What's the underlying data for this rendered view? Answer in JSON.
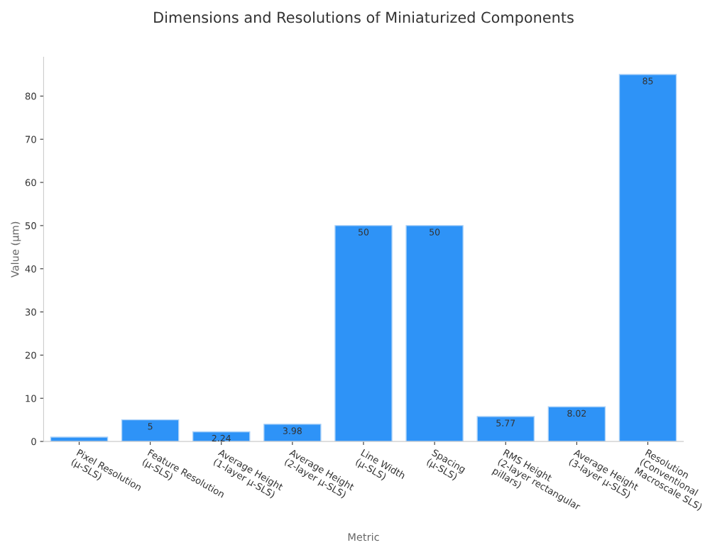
{
  "chart_data": {
    "type": "bar",
    "title": "Dimensions and Resolutions of Miniaturized Components",
    "xlabel": "Metric",
    "ylabel": "Value (µm)",
    "categories": [
      "Pixel Resolution\n(µ-SLS)",
      "Feature Resolution\n(µ-SLS)",
      "Average Height\n(1-layer µ-SLS)",
      "Average Height\n(2-layer µ-SLS)",
      "Line Width\n(µ-SLS)",
      "Spacing\n(µ-SLS)",
      "RMS Height\n(2-layer rectangular\npillars)",
      "Average Height\n(3-layer µ-SLS)",
      "Resolution\n(Conventional\nMacroscale SLS)"
    ],
    "values": [
      1,
      5,
      2.24,
      3.98,
      50,
      50,
      5.77,
      8.02,
      85
    ],
    "value_labels": [
      null,
      "5",
      "2.24",
      "3.98",
      "50",
      "50",
      "5.77",
      "8.02",
      "85"
    ],
    "color": "#2e93f7",
    "ylim": [
      0,
      89
    ],
    "yticks": [
      0,
      10,
      20,
      30,
      40,
      50,
      60,
      70,
      80
    ],
    "grid": false
  }
}
